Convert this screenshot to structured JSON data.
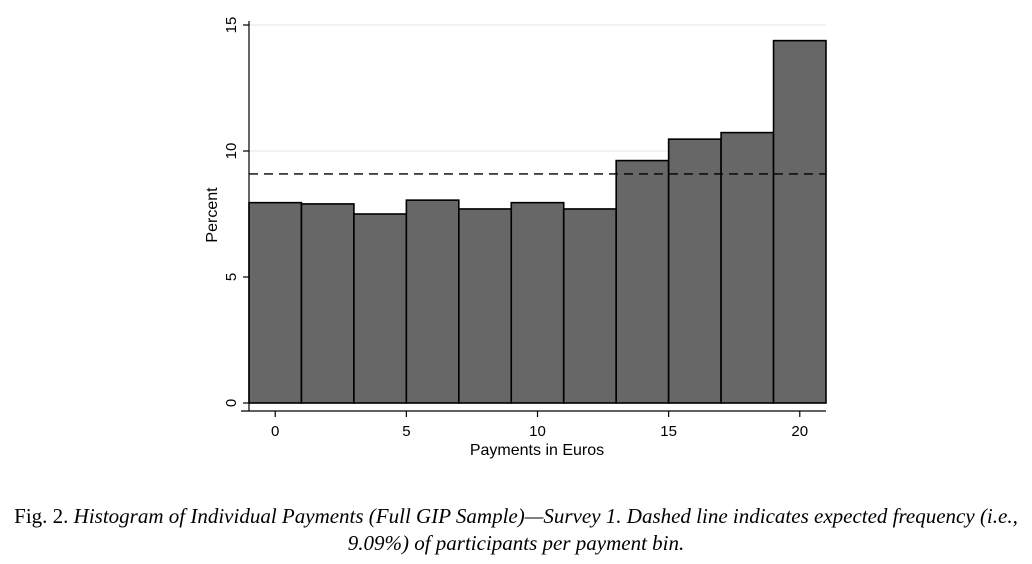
{
  "chart_data": {
    "type": "bar",
    "x": [
      0,
      2,
      4,
      6,
      8,
      10,
      12,
      14,
      16,
      18,
      20
    ],
    "values": [
      7.95,
      7.9,
      7.5,
      8.05,
      7.7,
      7.95,
      7.7,
      9.62,
      10.47,
      10.73,
      14.38
    ],
    "bin_width": 2,
    "expected_line": 9.09,
    "xlabel": "Payments in Euros",
    "ylabel": "Percent",
    "xticks": [
      0,
      5,
      10,
      15,
      20
    ],
    "yticks": [
      0,
      5,
      10,
      15
    ],
    "xlim": [
      -1,
      21
    ],
    "ylim": [
      0,
      15
    ],
    "grid": true,
    "colors": {
      "bar_fill": "#676767",
      "bar_stroke": "#000000",
      "grid": "#e4e4e4"
    }
  },
  "caption": {
    "prefix": "Fig. 2. ",
    "text": "Histogram of Individual Payments (Full GIP Sample)—Survey 1. Dashed line indicates expected frequency (i.e., 9.09%) of participants per payment bin."
  }
}
